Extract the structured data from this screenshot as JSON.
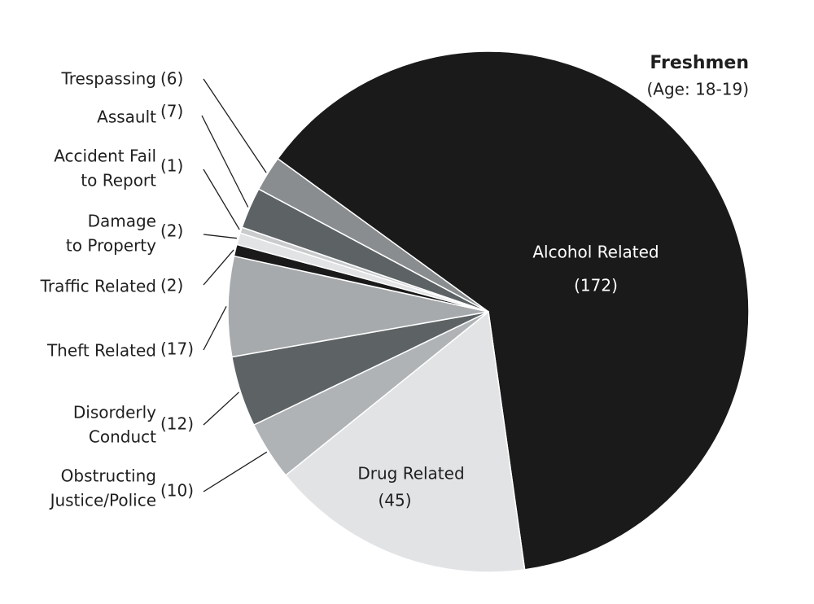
{
  "chart_data": {
    "type": "pie",
    "title": "Freshmen",
    "subtitle": "(Age: 18-19)",
    "categories": [
      [
        "Alcohol Related"
      ],
      [
        "Drug Related"
      ],
      [
        "Obstructing",
        "Justice/Police"
      ],
      [
        "Disorderly",
        "Conduct"
      ],
      [
        "Theft Related"
      ],
      [
        "Traffic Related"
      ],
      [
        "Damage",
        "to Property"
      ],
      [
        "Accident Fail",
        "to Report"
      ],
      [
        "Assault"
      ],
      [
        "Trespassing"
      ]
    ],
    "values": [
      172,
      45,
      10,
      12,
      17,
      2,
      2,
      1,
      7,
      6
    ],
    "value_labels": [
      "(172)",
      "(45)",
      "(10)",
      "(12)",
      "(17)",
      "(2)",
      "(2)",
      "(1)",
      "(7)",
      "(6)"
    ],
    "colors": [
      "#1a1a1a",
      "#e2e3e5",
      "#b0b3b5",
      "#5d6264",
      "#a7aaac",
      "#1a1a1a",
      "#e2e3e5",
      "#c9cbcd",
      "#5d6264",
      "#8a8d8f"
    ]
  }
}
